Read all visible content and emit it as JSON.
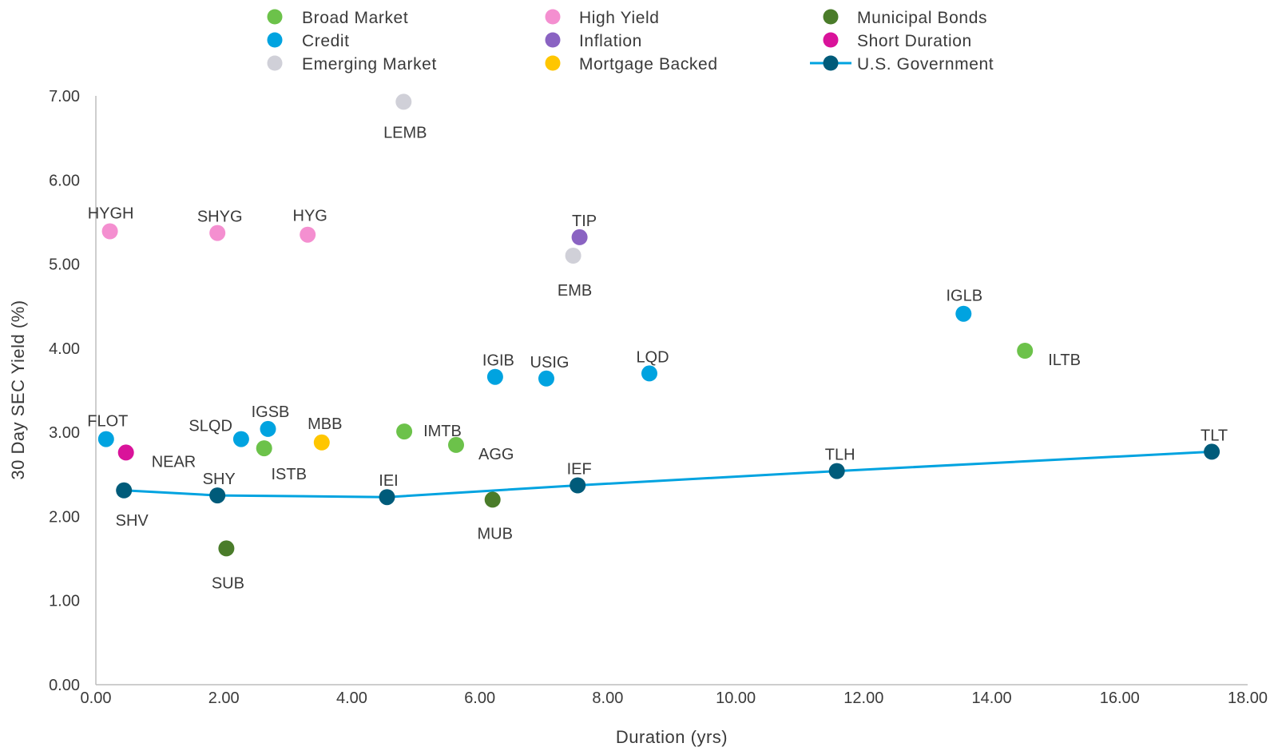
{
  "chart_data": {
    "type": "scatter",
    "xlabel": "Duration (yrs)",
    "ylabel": "30 Day SEC Yield (%)",
    "xlim": [
      0,
      18
    ],
    "ylim": [
      0,
      7
    ],
    "x_ticks": [
      "0.00",
      "2.00",
      "4.00",
      "6.00",
      "8.00",
      "10.00",
      "12.00",
      "14.00",
      "16.00",
      "18.00"
    ],
    "y_ticks": [
      "0.00",
      "1.00",
      "2.00",
      "3.00",
      "4.00",
      "5.00",
      "6.00",
      "7.00"
    ],
    "grid": false,
    "legend_position": "top",
    "series": [
      {
        "name": "Broad Market",
        "color": "#6cc24a",
        "style": "markers",
        "points": [
          {
            "label": "ISTB",
            "x": 2.63,
            "y": 2.81
          },
          {
            "label": "IMTB",
            "x": 4.82,
            "y": 3.01
          },
          {
            "label": "AGG",
            "x": 5.63,
            "y": 2.85
          },
          {
            "label": "ILTB",
            "x": 14.52,
            "y": 3.97
          }
        ]
      },
      {
        "name": "Credit",
        "color": "#00a3e0",
        "style": "markers",
        "points": [
          {
            "label": "FLOT",
            "x": 0.16,
            "y": 2.92
          },
          {
            "label": "SLQD",
            "x": 2.27,
            "y": 2.92
          },
          {
            "label": "IGSB",
            "x": 2.69,
            "y": 3.04
          },
          {
            "label": "IGIB",
            "x": 6.24,
            "y": 3.66
          },
          {
            "label": "USIG",
            "x": 7.04,
            "y": 3.64
          },
          {
            "label": "LQD",
            "x": 8.65,
            "y": 3.7
          },
          {
            "label": "IGLB",
            "x": 13.56,
            "y": 4.41
          }
        ]
      },
      {
        "name": "Emerging Market",
        "color": "#d0d0d8",
        "style": "markers",
        "points": [
          {
            "label": "LEMB",
            "x": 4.81,
            "y": 6.93
          },
          {
            "label": "EMB",
            "x": 7.46,
            "y": 5.1
          }
        ]
      },
      {
        "name": "High Yield",
        "color": "#f48fd0",
        "style": "markers",
        "points": [
          {
            "label": "HYGH",
            "x": 0.22,
            "y": 5.39
          },
          {
            "label": "SHYG",
            "x": 1.9,
            "y": 5.37
          },
          {
            "label": "HYG",
            "x": 3.31,
            "y": 5.35
          }
        ]
      },
      {
        "name": "Inflation",
        "color": "#8a63c2",
        "style": "markers",
        "points": [
          {
            "label": "TIP",
            "x": 7.56,
            "y": 5.32
          }
        ]
      },
      {
        "name": "Mortgage Backed",
        "color": "#ffc600",
        "style": "markers",
        "points": [
          {
            "label": "MBB",
            "x": 3.53,
            "y": 2.88
          }
        ]
      },
      {
        "name": "Municipal Bonds",
        "color": "#4a7c2a",
        "style": "markers",
        "points": [
          {
            "label": "SUB",
            "x": 2.04,
            "y": 1.62
          },
          {
            "label": "MUB",
            "x": 6.2,
            "y": 2.2
          }
        ]
      },
      {
        "name": "Short Duration",
        "color": "#d9139a",
        "style": "markers",
        "points": [
          {
            "label": "NEAR",
            "x": 0.47,
            "y": 2.76
          }
        ]
      },
      {
        "name": "U.S. Government",
        "color": "#005b7a",
        "line_color": "#00a3e0",
        "style": "line-markers",
        "points": [
          {
            "label": "SHV",
            "x": 0.44,
            "y": 2.31
          },
          {
            "label": "SHY",
            "x": 1.9,
            "y": 2.25
          },
          {
            "label": "IEI",
            "x": 4.55,
            "y": 2.23
          },
          {
            "label": "IEF",
            "x": 7.53,
            "y": 2.37
          },
          {
            "label": "TLH",
            "x": 11.58,
            "y": 2.54
          },
          {
            "label": "TLT",
            "x": 17.44,
            "y": 2.77
          }
        ]
      }
    ]
  }
}
